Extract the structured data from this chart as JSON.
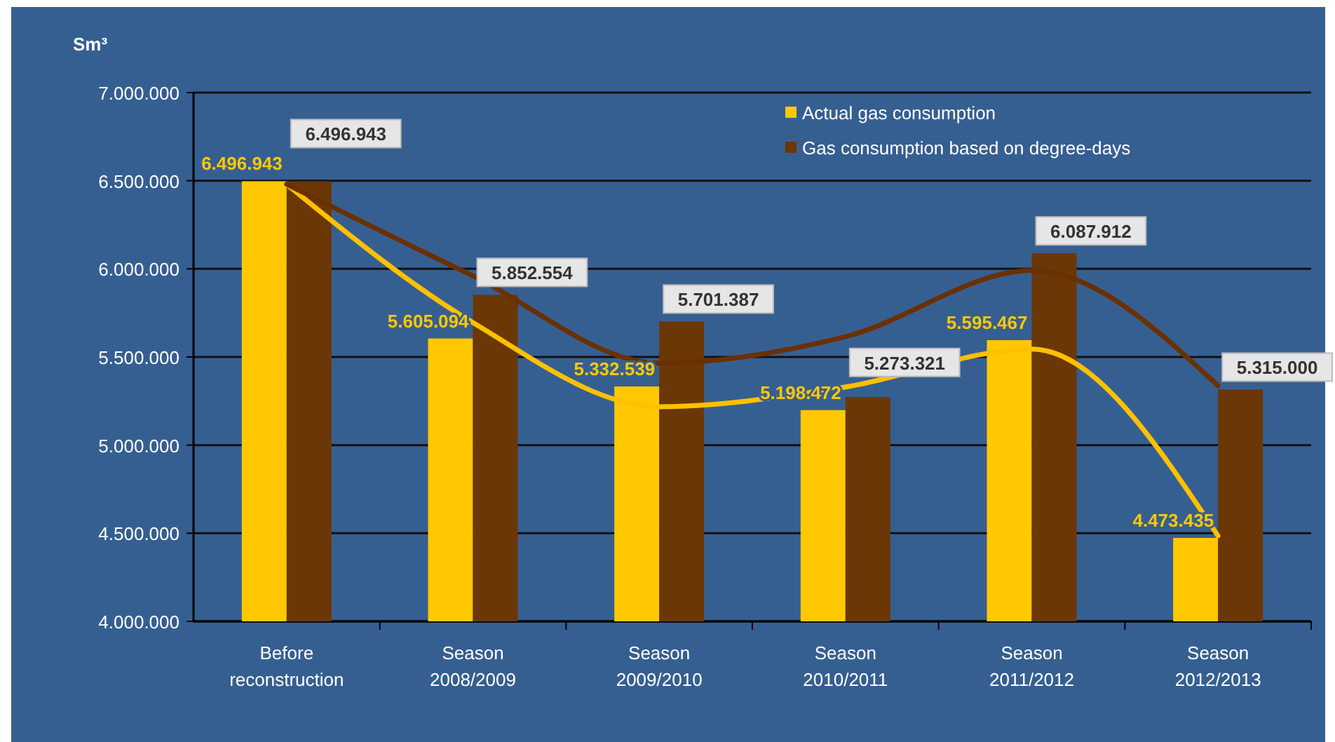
{
  "chart_data": {
    "type": "bar",
    "ylabel": "Sm³",
    "categories": [
      "Before reconstruction",
      "Season 2008/2009",
      "Season 2009/2010",
      "Season 2010/2011",
      "Season 2011/2012",
      "Season 2012/2013"
    ],
    "series": [
      {
        "name": "Actual gas consumption",
        "color": "#ffc800",
        "values": [
          6496943,
          5605094,
          5332539,
          5198472,
          5595467,
          4473435
        ],
        "value_labels": [
          "6.496.943",
          "5.605.094",
          "5.332.539",
          "5.198.472",
          "5.595.467",
          "4.473.435"
        ]
      },
      {
        "name": "Gas consumption based on degree-days",
        "color": "#6b3706",
        "values": [
          6496943,
          5852554,
          5701387,
          5273321,
          6087912,
          5315000
        ],
        "value_labels": [
          "6.496.943",
          "5.852.554",
          "5.701.387",
          "5.273.321",
          "6.087.912",
          "5.315.000"
        ]
      },
      {
        "type": "line",
        "color": "#ffc000",
        "values": [
          6480000,
          5695000,
          5218000,
          5330000,
          5545000,
          4485000
        ]
      },
      {
        "type": "line",
        "color": "#6b3000",
        "values": [
          6480000,
          5960000,
          5465000,
          5615000,
          5990000,
          5337000
        ]
      }
    ],
    "ylim": [
      4000000,
      7000000
    ],
    "yticks": [
      {
        "value": 4000000,
        "label": "4.000.000"
      },
      {
        "value": 4500000,
        "label": "4.500.000"
      },
      {
        "value": 5000000,
        "label": "5.000.000"
      },
      {
        "value": 5500000,
        "label": "5.500.000"
      },
      {
        "value": 6000000,
        "label": "6.000.000"
      },
      {
        "value": 6500000,
        "label": "6.500.000"
      },
      {
        "value": 7000000,
        "label": "7.000.000"
      }
    ],
    "grid": "y",
    "legend": "top right"
  }
}
